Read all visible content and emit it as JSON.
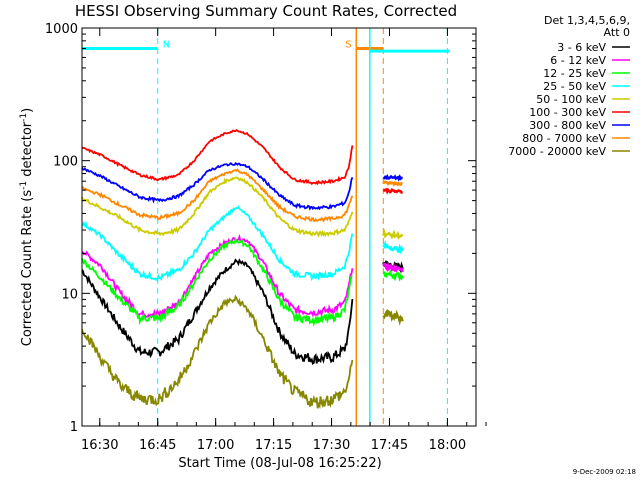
{
  "chart_data": {
    "type": "line",
    "title": "HESSI Observing Summary Count Rates, Corrected",
    "xlabel": "Start Time (08-Jul-08 16:25:22)",
    "ylabel": "Corrected Count Rate (s",
    "ylabel_sup1": "-1",
    "ylabel_mid": " detector",
    "ylabel_sup2": "-1",
    "ylabel_end": ")",
    "x_unit": "minutes since 16:25:22 (axis ticks show HH:MM)",
    "xlim": [
      0,
      102
    ],
    "ylim": [
      1,
      1000
    ],
    "y_scale": "log",
    "x_ticks": [
      {
        "label": "16:30",
        "x": 4.6
      },
      {
        "label": "16:45",
        "x": 19.6
      },
      {
        "label": "17:00",
        "x": 34.6
      },
      {
        "label": "17:15",
        "x": 49.6
      },
      {
        "label": "17:30",
        "x": 64.6
      },
      {
        "label": "17:45",
        "x": 79.6
      },
      {
        "label": "18:00",
        "x": 94.6
      }
    ],
    "y_ticks": [
      {
        "label": "1",
        "y": 1
      },
      {
        "label": "10",
        "y": 10
      },
      {
        "label": "100",
        "y": 100
      },
      {
        "label": "1000",
        "y": 1000
      }
    ],
    "legend": {
      "header": [
        "Det 1,3,4,5,6,9,",
        "Att 0"
      ],
      "position": "right"
    },
    "series": [
      {
        "name": "3 - 6 keV",
        "color": "#000000",
        "points": [
          [
            0,
            15
          ],
          [
            5,
            9
          ],
          [
            10,
            5.5
          ],
          [
            15,
            3.6
          ],
          [
            20,
            3.6
          ],
          [
            25,
            4.5
          ],
          [
            29,
            7
          ],
          [
            33,
            11
          ],
          [
            37,
            15
          ],
          [
            40,
            17.5
          ],
          [
            43,
            16
          ],
          [
            47,
            10
          ],
          [
            51,
            5.2
          ],
          [
            55,
            3.5
          ],
          [
            60,
            3.2
          ],
          [
            65,
            3.3
          ],
          [
            68,
            3.8
          ],
          [
            69,
            5
          ],
          [
            70,
            9
          ]
        ],
        "post": [
          [
            78,
            17
          ],
          [
            83,
            15.5
          ]
        ]
      },
      {
        "name": "6 - 12 keV",
        "color": "#ff00ff",
        "points": [
          [
            0,
            21
          ],
          [
            5,
            16
          ],
          [
            10,
            10
          ],
          [
            15,
            7
          ],
          [
            20,
            7
          ],
          [
            25,
            8.5
          ],
          [
            29,
            13
          ],
          [
            33,
            20
          ],
          [
            37,
            24
          ],
          [
            40,
            26
          ],
          [
            43,
            25
          ],
          [
            47,
            17
          ],
          [
            51,
            10
          ],
          [
            55,
            7.5
          ],
          [
            60,
            7.2
          ],
          [
            65,
            7.5
          ],
          [
            68,
            8.5
          ],
          [
            69,
            11
          ],
          [
            70,
            16
          ]
        ],
        "post": [
          [
            78,
            16
          ],
          [
            83,
            15
          ]
        ]
      },
      {
        "name": "12 - 25 keV",
        "color": "#00ff00",
        "points": [
          [
            0,
            18
          ],
          [
            5,
            13
          ],
          [
            10,
            9
          ],
          [
            15,
            6.5
          ],
          [
            20,
            6.5
          ],
          [
            25,
            8
          ],
          [
            29,
            12
          ],
          [
            33,
            18
          ],
          [
            37,
            23
          ],
          [
            40,
            25
          ],
          [
            43,
            23
          ],
          [
            47,
            15
          ],
          [
            51,
            9
          ],
          [
            55,
            6.6
          ],
          [
            60,
            6.3
          ],
          [
            65,
            6.5
          ],
          [
            68,
            7.5
          ],
          [
            69,
            10
          ],
          [
            70,
            14
          ]
        ],
        "post": [
          [
            78,
            14
          ],
          [
            83,
            13.5
          ]
        ]
      },
      {
        "name": "25 - 50 keV",
        "color": "#00ffff",
        "points": [
          [
            0,
            34
          ],
          [
            5,
            27
          ],
          [
            10,
            19
          ],
          [
            15,
            14
          ],
          [
            20,
            13
          ],
          [
            25,
            15
          ],
          [
            29,
            20
          ],
          [
            33,
            30
          ],
          [
            37,
            38
          ],
          [
            40,
            45
          ],
          [
            43,
            38
          ],
          [
            47,
            27
          ],
          [
            51,
            18
          ],
          [
            55,
            14
          ],
          [
            60,
            13.5
          ],
          [
            65,
            14
          ],
          [
            68,
            16
          ],
          [
            69,
            20
          ],
          [
            70,
            28
          ]
        ],
        "post": [
          [
            78,
            23
          ],
          [
            83,
            21
          ]
        ]
      },
      {
        "name": "50 - 100 keV",
        "color": "#cccc00",
        "points": [
          [
            0,
            52
          ],
          [
            5,
            44
          ],
          [
            10,
            37
          ],
          [
            15,
            30
          ],
          [
            20,
            28
          ],
          [
            25,
            30
          ],
          [
            29,
            40
          ],
          [
            33,
            58
          ],
          [
            37,
            70
          ],
          [
            40,
            75
          ],
          [
            43,
            68
          ],
          [
            47,
            52
          ],
          [
            51,
            37
          ],
          [
            55,
            30
          ],
          [
            60,
            28
          ],
          [
            65,
            28.5
          ],
          [
            68,
            30
          ],
          [
            69,
            34
          ],
          [
            70,
            42
          ]
        ],
        "post": [
          [
            78,
            28
          ],
          [
            83,
            27
          ]
        ]
      },
      {
        "name": "100 - 300 keV",
        "color": "#ff0000",
        "points": [
          [
            0,
            125
          ],
          [
            5,
            110
          ],
          [
            10,
            92
          ],
          [
            15,
            78
          ],
          [
            20,
            72
          ],
          [
            25,
            78
          ],
          [
            29,
            100
          ],
          [
            33,
            140
          ],
          [
            37,
            160
          ],
          [
            40,
            170
          ],
          [
            43,
            158
          ],
          [
            47,
            125
          ],
          [
            51,
            90
          ],
          [
            55,
            72
          ],
          [
            60,
            68
          ],
          [
            65,
            70
          ],
          [
            68,
            75
          ],
          [
            69,
            88
          ],
          [
            70,
            130
          ]
        ],
        "post": [
          [
            78,
            60
          ],
          [
            83,
            58
          ]
        ]
      },
      {
        "name": "300 - 800 keV",
        "color": "#0000ff",
        "points": [
          [
            0,
            88
          ],
          [
            5,
            76
          ],
          [
            10,
            63
          ],
          [
            15,
            53
          ],
          [
            20,
            50
          ],
          [
            25,
            54
          ],
          [
            29,
            66
          ],
          [
            33,
            85
          ],
          [
            37,
            93
          ],
          [
            40,
            95
          ],
          [
            43,
            90
          ],
          [
            47,
            72
          ],
          [
            51,
            55
          ],
          [
            55,
            46
          ],
          [
            60,
            44
          ],
          [
            65,
            45
          ],
          [
            68,
            48
          ],
          [
            69,
            56
          ],
          [
            70,
            76
          ]
        ],
        "post": [
          [
            78,
            75
          ],
          [
            83,
            74
          ]
        ]
      },
      {
        "name": "800 - 7000 keV",
        "color": "#ff8800",
        "points": [
          [
            0,
            62
          ],
          [
            5,
            55
          ],
          [
            10,
            46
          ],
          [
            15,
            39
          ],
          [
            20,
            37
          ],
          [
            25,
            40
          ],
          [
            29,
            50
          ],
          [
            33,
            70
          ],
          [
            37,
            80
          ],
          [
            40,
            85
          ],
          [
            43,
            78
          ],
          [
            47,
            60
          ],
          [
            51,
            45
          ],
          [
            55,
            38
          ],
          [
            60,
            36
          ],
          [
            65,
            36.5
          ],
          [
            68,
            39
          ],
          [
            69,
            45
          ],
          [
            70,
            55
          ]
        ],
        "post": [
          [
            78,
            68
          ],
          [
            83,
            67
          ]
        ]
      },
      {
        "name": "7000 - 20000 keV",
        "color": "#888800",
        "points": [
          [
            0,
            5.5
          ],
          [
            5,
            3.2
          ],
          [
            10,
            2
          ],
          [
            15,
            1.6
          ],
          [
            20,
            1.6
          ],
          [
            25,
            2.2
          ],
          [
            29,
            3.5
          ],
          [
            33,
            6
          ],
          [
            37,
            8.5
          ],
          [
            40,
            9
          ],
          [
            43,
            7.5
          ],
          [
            47,
            4.5
          ],
          [
            51,
            2.5
          ],
          [
            55,
            1.8
          ],
          [
            60,
            1.5
          ],
          [
            65,
            1.6
          ],
          [
            68,
            1.8
          ],
          [
            69,
            2.2
          ],
          [
            70,
            3
          ]
        ],
        "post": [
          [
            78,
            7
          ],
          [
            83,
            6.5
          ]
        ]
      }
    ],
    "annotations": [
      {
        "label": "N",
        "color": "#00ffff",
        "kind": "night",
        "bar": [
          0,
          19.6
        ],
        "y": 700,
        "dashed_x": [
          19.6,
          94.6
        ]
      },
      {
        "label": "S",
        "color": "#ff8800",
        "kind": "saa",
        "bar": [
          71,
          78
        ],
        "y": 700,
        "solid_x": [
          71
        ],
        "dashed_x": [
          78
        ]
      },
      {
        "label": "",
        "color": "#00ffff",
        "kind": "night",
        "bar": [
          74.5,
          95
        ],
        "y": 670,
        "solid_x": [
          74.5
        ]
      }
    ]
  },
  "footer": {
    "timestamp": "9-Dec-2009 02:18"
  }
}
